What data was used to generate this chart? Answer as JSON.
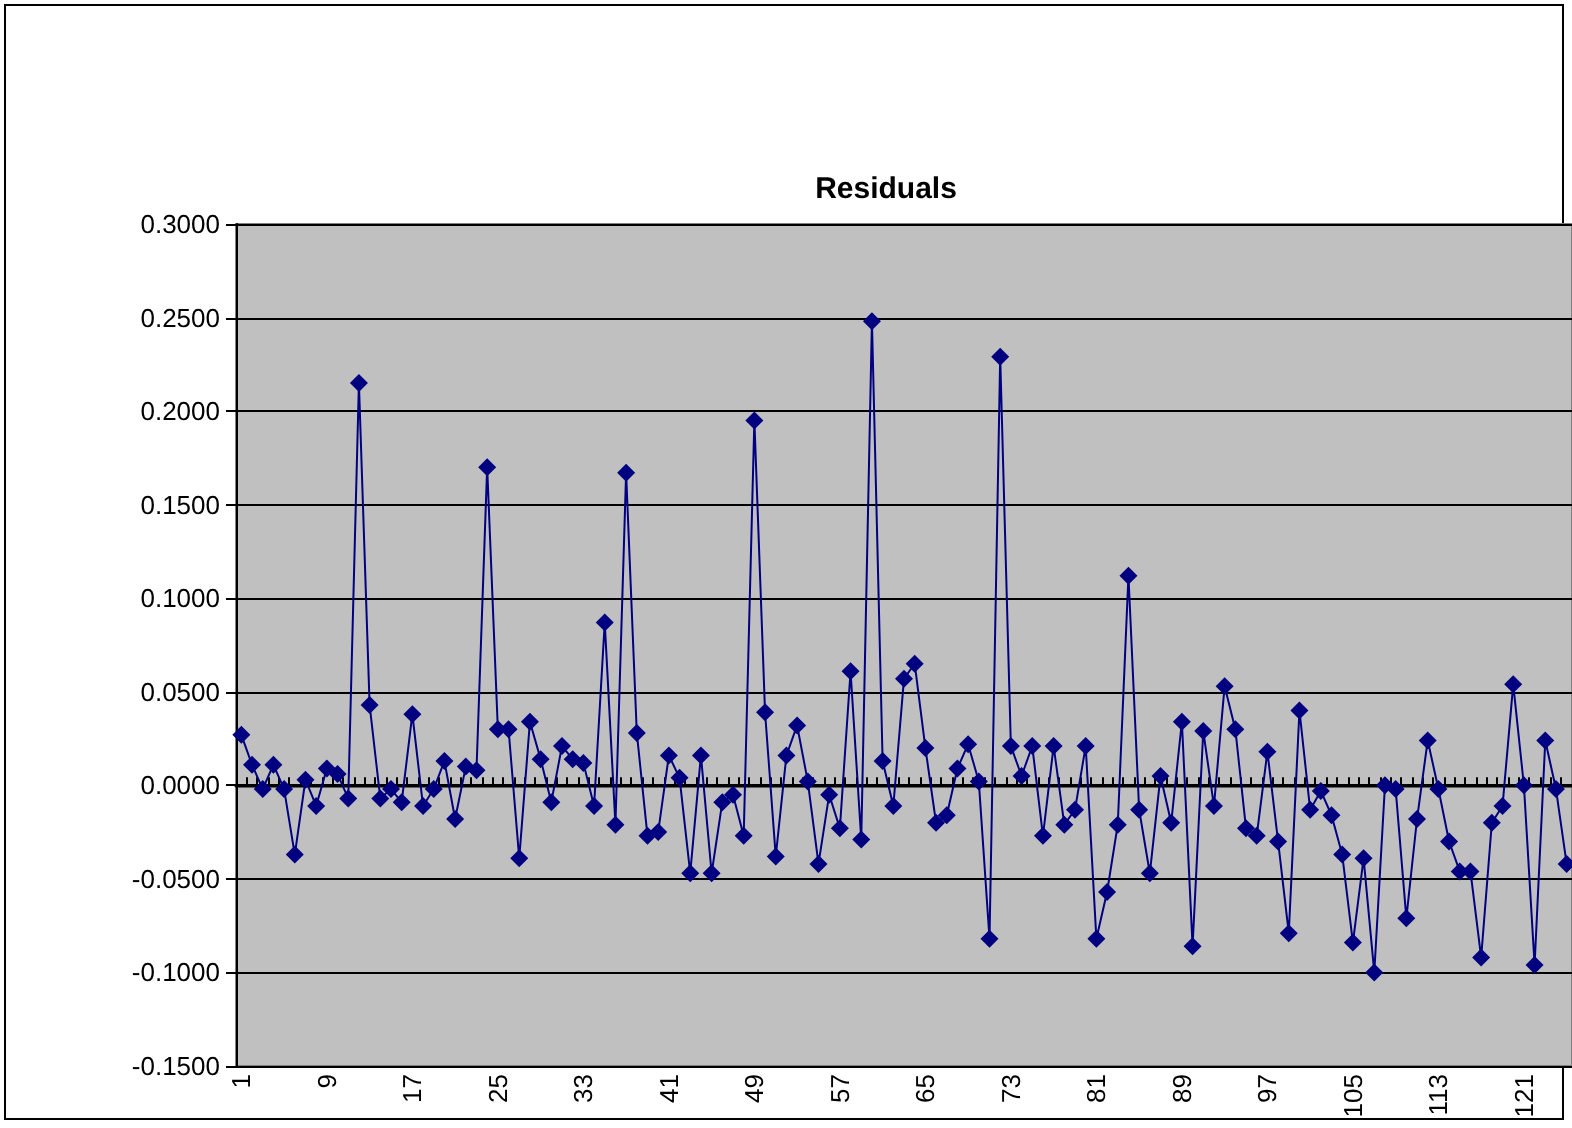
{
  "chart_data": {
    "type": "line",
    "title": "Residuals",
    "categories": [
      "1",
      null,
      null,
      null,
      null,
      null,
      null,
      null,
      "9",
      null,
      null,
      null,
      null,
      null,
      null,
      null,
      "17",
      null,
      null,
      null,
      null,
      null,
      null,
      null,
      "25",
      null,
      null,
      null,
      null,
      null,
      null,
      null,
      "33",
      null,
      null,
      null,
      null,
      null,
      null,
      null,
      "41",
      null,
      null,
      null,
      null,
      null,
      null,
      null,
      "49",
      null,
      null,
      null,
      null,
      null,
      null,
      null,
      "57",
      null,
      null,
      null,
      null,
      null,
      null,
      null,
      "65",
      null,
      null,
      null,
      null,
      null,
      null,
      null,
      "73",
      null,
      null,
      null,
      null,
      null,
      null,
      null,
      "81",
      null,
      null,
      null,
      null,
      null,
      null,
      null,
      "89",
      null,
      null,
      null,
      null,
      null,
      null,
      null,
      "97",
      null,
      null,
      null,
      null,
      null,
      null,
      null,
      "105",
      null,
      null,
      null,
      null,
      null,
      null,
      null,
      "113",
      null,
      null,
      null,
      null,
      null,
      null,
      null,
      "121",
      null,
      null,
      null,
      null
    ],
    "series": [
      {
        "color": "#000080",
        "values": [
          0.027,
          0.011,
          -0.002,
          0.011,
          -0.002,
          -0.037,
          0.003,
          -0.011,
          0.009,
          0.006,
          -0.007,
          0.215,
          0.043,
          -0.007,
          -0.002,
          -0.009,
          0.038,
          -0.011,
          -0.002,
          0.013,
          -0.018,
          0.01,
          0.008,
          0.17,
          0.03,
          0.03,
          -0.039,
          0.034,
          0.014,
          -0.009,
          0.021,
          0.014,
          0.012,
          -0.011,
          0.087,
          -0.021,
          0.167,
          0.028,
          -0.027,
          -0.025,
          0.016,
          0.004,
          -0.047,
          0.016,
          -0.047,
          -0.009,
          -0.005,
          -0.027,
          0.195,
          0.039,
          -0.038,
          0.016,
          0.032,
          0.002,
          -0.042,
          -0.005,
          -0.023,
          0.061,
          -0.029,
          0.248,
          0.013,
          -0.011,
          0.057,
          0.065,
          0.02,
          -0.02,
          -0.016,
          0.009,
          0.022,
          0.002,
          -0.082,
          0.229,
          0.021,
          0.005,
          0.021,
          -0.027,
          0.021,
          -0.021,
          -0.013,
          0.021,
          -0.082,
          -0.057,
          -0.021,
          0.112,
          -0.013,
          -0.047,
          0.005,
          -0.02,
          0.034,
          -0.086,
          0.029,
          -0.011,
          0.053,
          0.03,
          -0.023,
          -0.027,
          0.018,
          -0.03,
          -0.079,
          0.04,
          -0.013,
          -0.003,
          -0.016,
          -0.037,
          -0.084,
          -0.039,
          -0.1,
          0.0,
          -0.002,
          -0.071,
          -0.018,
          0.024,
          -0.002,
          -0.03,
          -0.046,
          -0.046,
          -0.092,
          -0.02,
          -0.011,
          0.054,
          0.0,
          -0.096,
          0.024,
          -0.002,
          -0.042
        ]
      }
    ],
    "ylim": [
      -0.15,
      0.3
    ],
    "yticks": [
      {
        "value": -0.15,
        "label": "-0.1500"
      },
      {
        "value": -0.1,
        "label": "-0.1000"
      },
      {
        "value": -0.05,
        "label": "-0.0500"
      },
      {
        "value": 0,
        "label": "0.0000"
      },
      {
        "value": 0.05,
        "label": "0.0500"
      },
      {
        "value": 0.1,
        "label": "0.1000"
      },
      {
        "value": 0.15,
        "label": "0.1500"
      },
      {
        "value": 0.2,
        "label": "0.2000"
      },
      {
        "value": 0.25,
        "label": "0.2500"
      },
      {
        "value": 0.3,
        "label": "0.3000"
      }
    ],
    "grid": "y",
    "marker": "diamond",
    "line_style": "solid"
  }
}
